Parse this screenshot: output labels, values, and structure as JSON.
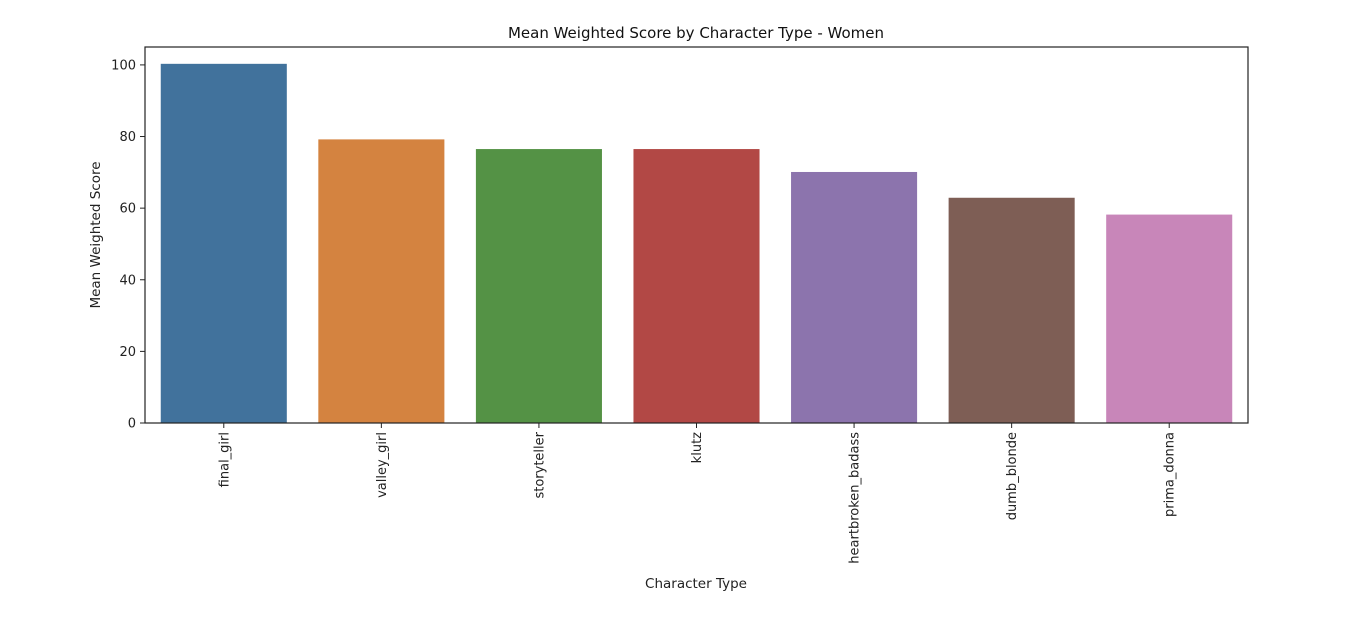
{
  "chart_data": {
    "type": "bar",
    "title": "Mean Weighted Score by Character Type - Women",
    "xlabel": "Character Type",
    "ylabel": "Mean Weighted Score",
    "categories": [
      "final_girl",
      "valley_girl",
      "storyteller",
      "klutz",
      "heartbroken_badass",
      "dumb_blonde",
      "prima_donna"
    ],
    "values": [
      100.3,
      79.2,
      76.5,
      76.5,
      70.1,
      62.9,
      58.2
    ],
    "colors": [
      "#41729c",
      "#d48340",
      "#549245",
      "#b24845",
      "#8c74ad",
      "#7e5e55",
      "#c886b9"
    ],
    "ylim": [
      0,
      105
    ],
    "yticks": [
      0,
      20,
      40,
      60,
      80,
      100
    ],
    "grid": false,
    "legend": "none"
  }
}
